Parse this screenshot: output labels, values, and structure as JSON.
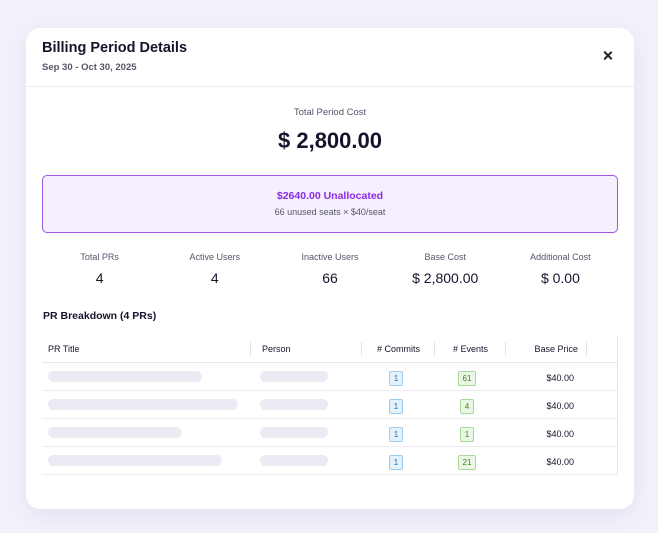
{
  "modal": {
    "title": "Billing Period Details",
    "subtitle": "Sep 30 - Oct 30, 2025"
  },
  "total": {
    "label": "Total Period Cost",
    "value": "$ 2,800.00"
  },
  "unallocated": {
    "title": "$2640.00 Unallocated",
    "detail": "66 unused seats × $40/seat",
    "accent_color": "#8a2be2"
  },
  "stats": [
    {
      "label": "Total PRs",
      "value": "4"
    },
    {
      "label": "Active Users",
      "value": "4"
    },
    {
      "label": "Inactive Users",
      "value": "66"
    },
    {
      "label": "Base Cost",
      "value": "$ 2,800.00"
    },
    {
      "label": "Additional Cost",
      "value": "$ 0.00"
    }
  ],
  "breakdown": {
    "title": "PR Breakdown (4 PRs)",
    "columns": {
      "pr_title": "PR Title",
      "person": "Person",
      "commits": "# Commits",
      "events": "# Events",
      "base_price": "Base Price"
    },
    "rows": [
      {
        "commits": "1",
        "events": "61",
        "price": "$40.00",
        "title_skeleton_fraction": 0.76,
        "person_skeleton_fraction": 0.62
      },
      {
        "commits": "1",
        "events": "4",
        "price": "$40.00",
        "title_skeleton_fraction": 0.93,
        "person_skeleton_fraction": 0.62
      },
      {
        "commits": "1",
        "events": "1",
        "price": "$40.00",
        "title_skeleton_fraction": 0.66,
        "person_skeleton_fraction": 0.62
      },
      {
        "commits": "1",
        "events": "21",
        "price": "$40.00",
        "title_skeleton_fraction": 0.86,
        "person_skeleton_fraction": 0.62
      }
    ]
  }
}
